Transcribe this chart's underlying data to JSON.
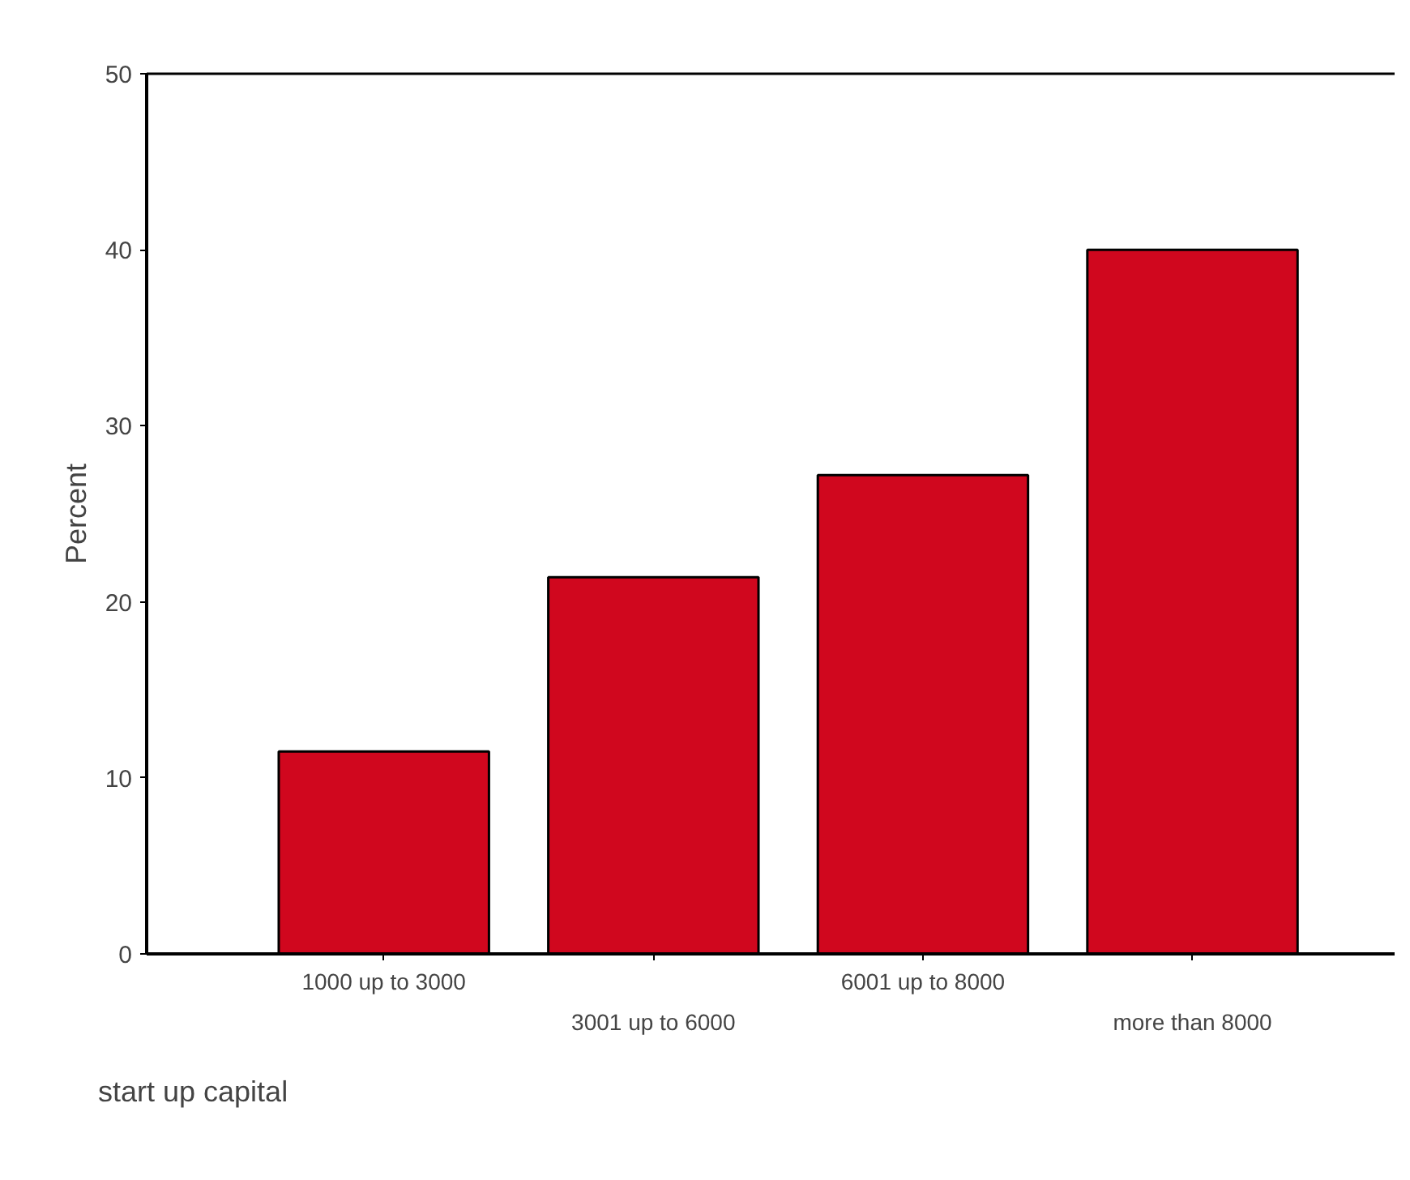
{
  "chart_data": {
    "type": "bar",
    "xlabel": "start up capital",
    "ylabel": "Percent",
    "categories": [
      "1000 up to 3000",
      "3001 up to 6000",
      "6001 up to 8000",
      "more than 8000"
    ],
    "values": [
      11.5,
      21.4,
      27.2,
      40.0
    ],
    "color": "#d0071e",
    "ylim": [
      0,
      50
    ],
    "yticks": [
      0,
      10,
      20,
      30,
      40,
      50
    ],
    "grid": false
  }
}
